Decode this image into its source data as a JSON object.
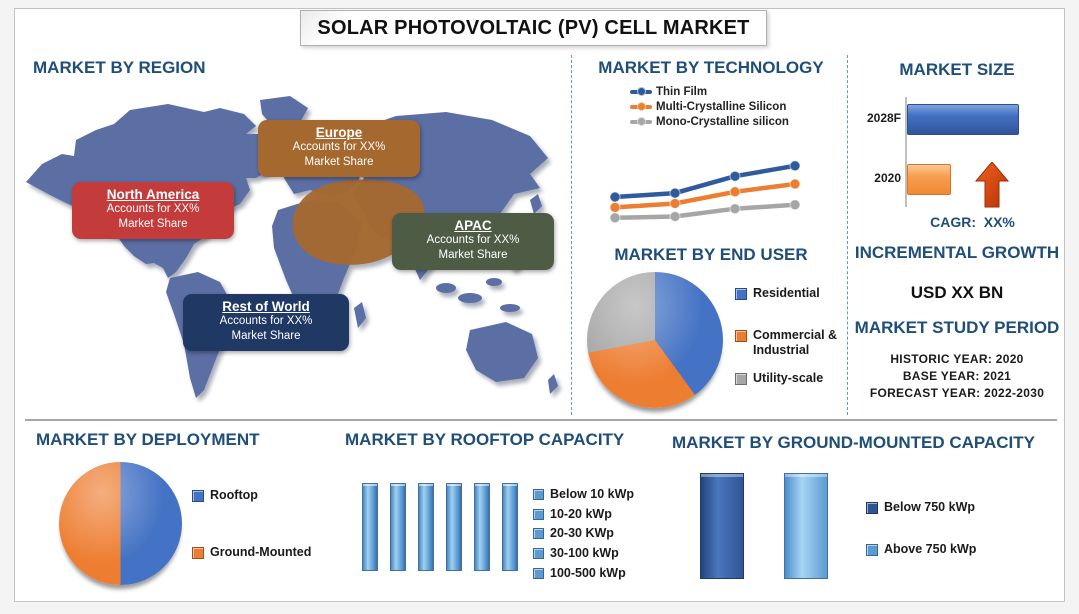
{
  "page_title": "SOLAR PHOTOVOLTAIC (PV) CELL MARKET",
  "palette": {
    "heading_blue": "#1F4E79",
    "divider_dash_blue": "#5B9BD5",
    "divider_solid_gray": "#A6A6A6",
    "map_land_blue": "#5C6FA4",
    "europe_highlight_brown": "#A5682E",
    "arrow_red": "#CC3A0E"
  },
  "region": {
    "heading": "MARKET BY REGION",
    "callouts": [
      {
        "name": "North America",
        "line1": "Accounts for XX%",
        "line2": "Market Share",
        "color": "#C33B3B"
      },
      {
        "name": "Europe",
        "line1": "Accounts for XX%",
        "line2": "Market Share",
        "color": "#A5682E"
      },
      {
        "name": "APAC",
        "line1": "Accounts for XX%",
        "line2": "Market Share",
        "color": "#4E5B45"
      },
      {
        "name": "Rest of World",
        "line1": "Accounts for XX%",
        "line2": "Market Share",
        "color": "#1F3864"
      }
    ]
  },
  "technology": {
    "heading": "MARKET BY TECHNOLOGY"
  },
  "market_size": {
    "heading": "MARKET SIZE",
    "cagr": "CAGR:  XX%"
  },
  "end_user": {
    "heading": "MARKET BY END USER"
  },
  "growth": {
    "heading": "INCREMENTAL GROWTH",
    "value": "USD XX BN"
  },
  "study_period": {
    "heading": "MARKET STUDY PERIOD",
    "items": [
      "HISTORIC YEAR: 2020",
      "BASE YEAR: 2021",
      "FORECAST YEAR: 2022-2030"
    ]
  },
  "deployment": {
    "heading": "MARKET BY DEPLOYMENT"
  },
  "rooftop": {
    "heading": "MARKET BY ROOFTOP CAPACITY"
  },
  "ground": {
    "heading": "MARKET BY GROUND-MOUNTED CAPACITY"
  },
  "chart_data": [
    {
      "id": "technology",
      "type": "line",
      "title": "MARKET BY TECHNOLOGY",
      "x": [
        1,
        2,
        3,
        4
      ],
      "series": [
        {
          "name": "Thin Film",
          "color": "#2F5B9D",
          "values": [
            30,
            33,
            46,
            54
          ]
        },
        {
          "name": "Multi-Crystalline Silicon",
          "color": "#ED7D31",
          "values": [
            22,
            25,
            34,
            40
          ]
        },
        {
          "name": "Mono-Crystalline silicon",
          "color": "#A6A6A6",
          "values": [
            14,
            15,
            21,
            24
          ]
        }
      ],
      "legend_position": "top",
      "grid": false,
      "axes_visible": false,
      "note": "placeholder chart - values estimated from pixel positions, actual figures shown as XX"
    },
    {
      "id": "market_size",
      "type": "bar",
      "orientation": "horizontal",
      "title": "MARKET SIZE",
      "categories": [
        "2028F",
        "2020"
      ],
      "values": [
        100,
        38
      ],
      "colors": [
        "#4472C4",
        "#F89C4E"
      ],
      "annotation": "CAGR:  XX%",
      "note": "relative lengths; actual values shown as XX"
    },
    {
      "id": "end_user",
      "type": "pie",
      "title": "MARKET BY END USER",
      "labels": [
        "Residential",
        "Commercial & Industrial",
        "Utility-scale"
      ],
      "values": [
        40,
        32,
        28
      ],
      "colors": [
        "#4472C4",
        "#ED7D31",
        "#A6A6A6"
      ],
      "legend_position": "right"
    },
    {
      "id": "deployment",
      "type": "pie",
      "title": "MARKET BY DEPLOYMENT",
      "labels": [
        "Rooftop",
        "Ground-Mounted"
      ],
      "values": [
        50,
        50
      ],
      "colors": [
        "#4472C4",
        "#ED7D31"
      ],
      "legend_position": "right"
    },
    {
      "id": "rooftop",
      "type": "bar",
      "orientation": "vertical",
      "title": "MARKET BY ROOFTOP CAPACITY",
      "categories": [
        "Below 10 kWp",
        "10-20 kWp",
        "20-30 KWp",
        "30-100 kWp",
        "100-500 kWp"
      ],
      "values": [
        1,
        1,
        1,
        1,
        1
      ],
      "bars_drawn": 6,
      "color": "#5B9BD5",
      "legend_position": "right",
      "note": "six equal placeholder bars drawn; five legend categories"
    },
    {
      "id": "ground",
      "type": "bar",
      "orientation": "vertical",
      "title": "MARKET BY GROUND-MOUNTED CAPACITY",
      "categories": [
        "Below 750 kWp",
        "Above 750 kWp"
      ],
      "values": [
        1,
        1
      ],
      "colors": [
        "#2F5597",
        "#5B9BD5"
      ],
      "legend_position": "right",
      "note": "two equal placeholder bars"
    }
  ]
}
